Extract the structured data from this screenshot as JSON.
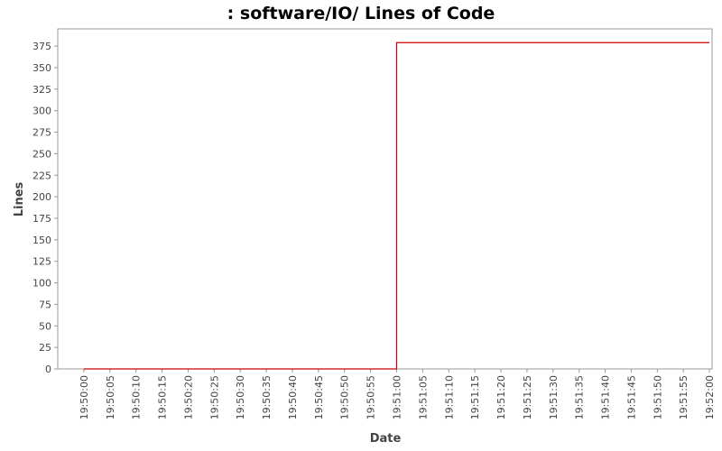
{
  "chart_data": {
    "type": "line",
    "title": ": software/IO/ Lines of Code",
    "xlabel": "Date",
    "ylabel": "Lines",
    "y_ticks": [
      0,
      25,
      50,
      75,
      100,
      125,
      150,
      175,
      200,
      225,
      250,
      275,
      300,
      325,
      350,
      375
    ],
    "ylim": [
      0,
      395
    ],
    "x_ticks": [
      "19:50:00",
      "19:50:05",
      "19:50:10",
      "19:50:15",
      "19:50:20",
      "19:50:25",
      "19:50:30",
      "19:50:35",
      "19:50:40",
      "19:50:45",
      "19:50:50",
      "19:50:55",
      "19:51:00",
      "19:51:05",
      "19:51:10",
      "19:51:15",
      "19:51:20",
      "19:51:25",
      "19:51:30",
      "19:51:35",
      "19:51:40",
      "19:51:45",
      "19:51:50",
      "19:51:55",
      "19:52:00"
    ],
    "xlim": [
      "19:49:55",
      "19:52:00.5"
    ],
    "step": true,
    "grid": false,
    "series": [
      {
        "color": "#cc0000",
        "points": [
          {
            "x": "19:50:00",
            "y": 0
          },
          {
            "x": "19:51:00",
            "y": 379
          },
          {
            "x": "19:52:00",
            "y": 379
          }
        ]
      }
    ]
  }
}
